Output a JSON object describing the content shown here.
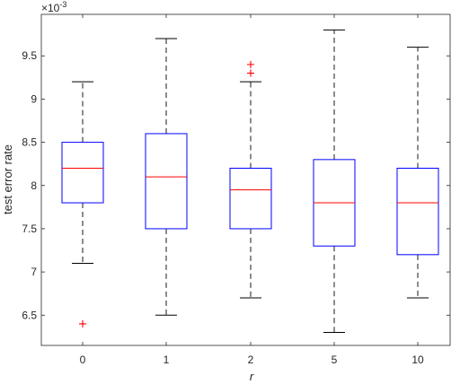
{
  "chart_data": {
    "type": "box",
    "exponent_label": "×10",
    "exponent_power": "-3",
    "ylabel": "test error rate",
    "xlabel": "r",
    "ylim": [
      6.15,
      9.98
    ],
    "yticks": [
      6.5,
      7,
      7.5,
      8,
      8.5,
      9,
      9.5
    ],
    "ytick_labels": [
      "6.5",
      "7",
      "7.5",
      "8",
      "8.5",
      "9",
      "9.5"
    ],
    "categories": [
      "0",
      "1",
      "2",
      "5",
      "10"
    ],
    "boxes": [
      {
        "category": "0",
        "whisker_low": 7.1,
        "q1": 7.8,
        "median": 8.2,
        "q3": 8.5,
        "whisker_high": 9.2,
        "outliers": [
          6.4
        ]
      },
      {
        "category": "1",
        "whisker_low": 6.5,
        "q1": 7.5,
        "median": 8.1,
        "q3": 8.6,
        "whisker_high": 9.7,
        "outliers": []
      },
      {
        "category": "2",
        "whisker_low": 6.7,
        "q1": 7.5,
        "median": 7.95,
        "q3": 8.2,
        "whisker_high": 9.2,
        "outliers": [
          9.3,
          9.4
        ]
      },
      {
        "category": "5",
        "whisker_low": 6.3,
        "q1": 7.3,
        "median": 7.8,
        "q3": 8.3,
        "whisker_high": 9.8,
        "outliers": []
      },
      {
        "category": "10",
        "whisker_low": 6.7,
        "q1": 7.2,
        "median": 7.8,
        "q3": 8.2,
        "whisker_high": 9.6,
        "outliers": []
      }
    ],
    "colors": {
      "box": "#0000ff",
      "median": "#ff0000",
      "whisker": "#000000",
      "outlier": "#ff0000",
      "axes": "#262626"
    },
    "grid": false
  }
}
